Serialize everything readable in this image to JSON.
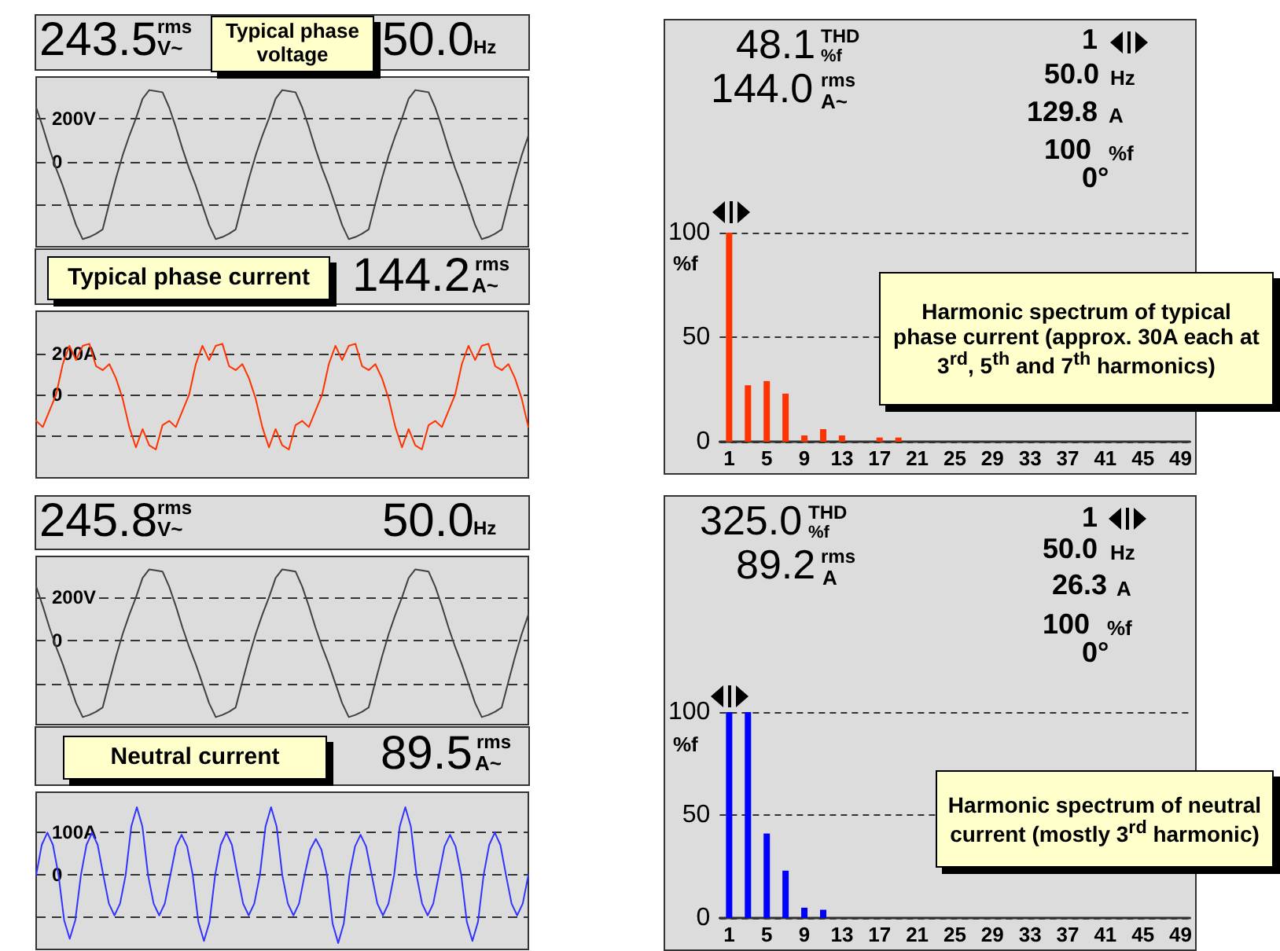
{
  "chart_data": [
    {
      "type": "line",
      "annotations": [
        "243.5",
        "rms",
        "V~",
        "50.0",
        "Hz",
        "Typical phase voltage"
      ],
      "categories": [
        null,
        null,
        null,
        null,
        null,
        null,
        null,
        null,
        null,
        null,
        null,
        null,
        null,
        null,
        null,
        null,
        null,
        null,
        null,
        null,
        null,
        null,
        null,
        null,
        null,
        null,
        null,
        null,
        null,
        null,
        null,
        null,
        null,
        null,
        null,
        null,
        null,
        null,
        null,
        null,
        null,
        null,
        null,
        null,
        null,
        null,
        null,
        null,
        null,
        null,
        null,
        null,
        null,
        null,
        null,
        null,
        null,
        null,
        null,
        null,
        null,
        null,
        null,
        null,
        null,
        null,
        null,
        null,
        null,
        null,
        null,
        null,
        null,
        null,
        null
      ],
      "values": [
        250,
        160,
        60,
        -30,
        -110,
        -200,
        -290,
        -355,
        -345,
        -330,
        -310,
        -190,
        -75,
        30,
        120,
        200,
        290,
        330,
        325,
        320,
        250,
        160,
        60,
        -30,
        -110,
        -200,
        -290,
        -355,
        -345,
        -330,
        -310,
        -190,
        -75,
        30,
        120,
        200,
        290,
        330,
        325,
        320,
        250,
        160,
        60,
        -30,
        -110,
        -200,
        -290,
        -355,
        -345,
        -330,
        -310,
        -190,
        -75,
        30,
        120,
        200,
        290,
        330,
        325,
        320,
        250,
        160,
        60,
        -30,
        -110,
        -200,
        -290,
        -355,
        -345,
        -330,
        -310,
        -190,
        -75,
        30,
        120
      ],
      "color": "#404040",
      "ylim": [
        -390,
        390
      ],
      "yticks": [
        {
          "value": 200,
          "label": "200V"
        },
        0,
        {
          "value": -200,
          "label": null
        }
      ],
      "grid": "y",
      "tick_labels": "y"
    },
    {
      "type": "line",
      "annotations": [
        "144.2",
        "rms",
        "A~",
        "Typical phase current"
      ],
      "categories": [
        null,
        null,
        null,
        null,
        null,
        null,
        null,
        null,
        null,
        null,
        null,
        null,
        null,
        null,
        null,
        null,
        null,
        null,
        null,
        null,
        null,
        null,
        null,
        null,
        null,
        null,
        null,
        null,
        null,
        null,
        null,
        null,
        null,
        null,
        null,
        null,
        null,
        null,
        null,
        null,
        null,
        null,
        null,
        null,
        null,
        null,
        null,
        null,
        null,
        null,
        null,
        null,
        null,
        null,
        null,
        null,
        null,
        null,
        null,
        null,
        null,
        null,
        null,
        null,
        null,
        null,
        null,
        null,
        null,
        null,
        null,
        null,
        null,
        null,
        null
      ],
      "values": [
        -130,
        -160,
        -80,
        0,
        150,
        240,
        170,
        240,
        250,
        140,
        120,
        150,
        80,
        -20,
        -160,
        -260,
        -170,
        -250,
        -270,
        -150,
        -130,
        -160,
        -80,
        0,
        150,
        240,
        170,
        240,
        250,
        140,
        120,
        150,
        80,
        -20,
        -160,
        -260,
        -170,
        -250,
        -270,
        -150,
        -130,
        -160,
        -80,
        0,
        150,
        240,
        170,
        240,
        250,
        140,
        120,
        150,
        80,
        -20,
        -160,
        -260,
        -170,
        -250,
        -270,
        -150,
        -130,
        -160,
        -80,
        0,
        150,
        240,
        170,
        240,
        250,
        140,
        120,
        150,
        80,
        -20,
        -160
      ],
      "color": "#ff3300",
      "ylim": [
        -410,
        410
      ],
      "yticks": [
        {
          "value": 200,
          "label": "200A"
        },
        0,
        {
          "value": -200,
          "label": null
        }
      ],
      "grid": "y",
      "tick_labels": "y"
    },
    {
      "type": "bar",
      "ylabel": "%f",
      "annotations": [
        "48.1",
        "THD",
        "%f",
        "144.0",
        "rms",
        "A~",
        "1",
        "50.0",
        "Hz",
        "129.8",
        "A",
        "100",
        "%f",
        "0°",
        "Harmonic spectrum of typical phase current (approx. 30A each at 3$^{rd}$, 5$^{th}$ and 7$^{th}$ harmonics)"
      ],
      "x": [
        1,
        3,
        5,
        7,
        9,
        11,
        13,
        17,
        19
      ],
      "values": [
        100,
        27,
        29,
        23,
        3,
        6,
        3,
        2,
        2
      ],
      "color": "#ff3300",
      "xlim": [
        0,
        50
      ],
      "xticks": [
        1,
        5,
        9,
        13,
        17,
        21,
        25,
        29,
        33,
        37,
        41,
        45,
        49
      ],
      "ylim": [
        0,
        100
      ],
      "yticks": [
        0,
        50,
        100
      ],
      "grid": "y"
    },
    {
      "type": "line",
      "annotations": [
        "245.8",
        "rms",
        "V~",
        "50.0",
        "Hz"
      ],
      "categories": [
        null,
        null,
        null,
        null,
        null,
        null,
        null,
        null,
        null,
        null,
        null,
        null,
        null,
        null,
        null,
        null,
        null,
        null,
        null,
        null,
        null,
        null,
        null,
        null,
        null,
        null,
        null,
        null,
        null,
        null,
        null,
        null,
        null,
        null,
        null,
        null,
        null,
        null,
        null,
        null,
        null,
        null,
        null,
        null,
        null,
        null,
        null,
        null,
        null,
        null,
        null,
        null,
        null,
        null,
        null,
        null,
        null,
        null,
        null,
        null,
        null,
        null,
        null,
        null,
        null,
        null,
        null,
        null,
        null,
        null,
        null,
        null,
        null,
        null,
        null
      ],
      "values": [
        250,
        160,
        60,
        -30,
        -110,
        -200,
        -290,
        -355,
        -345,
        -330,
        -310,
        -190,
        -75,
        30,
        120,
        200,
        290,
        330,
        325,
        320,
        250,
        160,
        60,
        -30,
        -110,
        -200,
        -290,
        -355,
        -345,
        -330,
        -310,
        -190,
        -75,
        30,
        120,
        200,
        290,
        330,
        325,
        320,
        250,
        160,
        60,
        -30,
        -110,
        -200,
        -290,
        -355,
        -345,
        -330,
        -310,
        -190,
        -75,
        30,
        120,
        200,
        290,
        330,
        325,
        320,
        250,
        160,
        60,
        -30,
        -110,
        -200,
        -290,
        -355,
        -345,
        -330,
        -310,
        -190,
        -75,
        30,
        120
      ],
      "color": "#404040",
      "ylim": [
        -390,
        390
      ],
      "yticks": [
        {
          "value": 200,
          "label": "200V"
        },
        0,
        {
          "value": -200,
          "label": null
        }
      ],
      "grid": "y",
      "tick_labels": "y"
    },
    {
      "type": "line",
      "annotations": [
        "89.5",
        "rms",
        "A~",
        "Neutral current"
      ],
      "categories": [
        null,
        null,
        null,
        null,
        null,
        null,
        null,
        null,
        null,
        null,
        null,
        null,
        null,
        null,
        null,
        null,
        null,
        null,
        null,
        null,
        null,
        null,
        null,
        null,
        null,
        null,
        null,
        null,
        null,
        null,
        null,
        null,
        null,
        null,
        null,
        null,
        null,
        null,
        null,
        null,
        null,
        null,
        null,
        null,
        null,
        null,
        null,
        null,
        null,
        null,
        null,
        null,
        null,
        null,
        null,
        null,
        null,
        null,
        null,
        null,
        null,
        null,
        null,
        null,
        null,
        null,
        null,
        null,
        null,
        null,
        null,
        null,
        null,
        null,
        null,
        null,
        null,
        null,
        null,
        null,
        null,
        null,
        null,
        null,
        null,
        null,
        null,
        null,
        null
      ],
      "values": [
        0,
        71,
        100,
        71,
        0,
        -106,
        -150,
        -106,
        0,
        71,
        100,
        71,
        0,
        -67,
        -95,
        -67,
        0,
        114,
        160,
        114,
        0,
        -67,
        -95,
        -67,
        0,
        67,
        95,
        67,
        0,
        -110,
        -155,
        -110,
        0,
        71,
        100,
        71,
        0,
        -67,
        -95,
        -67,
        0,
        114,
        160,
        114,
        0,
        -67,
        -95,
        -67,
        0,
        60,
        85,
        60,
        0,
        -114,
        -160,
        -114,
        0,
        67,
        95,
        67,
        0,
        -67,
        -95,
        -67,
        0,
        114,
        160,
        114,
        0,
        -67,
        -95,
        -67,
        0,
        67,
        95,
        67,
        0,
        -110,
        -155,
        -110,
        0,
        71,
        100,
        71,
        0,
        -67,
        -95,
        -67,
        0
      ],
      "color": "#3333ff",
      "ylim": [
        -175,
        195
      ],
      "yticks": [
        {
          "value": 100,
          "label": "100A"
        },
        0,
        {
          "value": -100,
          "label": null
        }
      ],
      "grid": "y",
      "tick_labels": "y"
    },
    {
      "type": "bar",
      "ylabel": "%f",
      "annotations": [
        "325.0",
        "THD",
        "%f",
        "89.2",
        "rms",
        "A",
        "1",
        "50.0",
        "Hz",
        "26.3",
        "A",
        "100",
        "%f",
        "0°",
        "Harmonic spectrum of neutral current (mostly 3$^{rd}$ harmonic)"
      ],
      "x": [
        1,
        3,
        5,
        7,
        9,
        11
      ],
      "values": [
        100,
        100,
        41,
        23,
        5,
        4
      ],
      "color": "#0000ff",
      "xlim": [
        0,
        50
      ],
      "xticks": [
        1,
        5,
        9,
        13,
        17,
        21,
        25,
        29,
        33,
        37,
        41,
        45,
        49
      ],
      "ylim": [
        0,
        100
      ],
      "yticks": [
        0,
        50,
        100
      ],
      "grid": "y"
    }
  ]
}
